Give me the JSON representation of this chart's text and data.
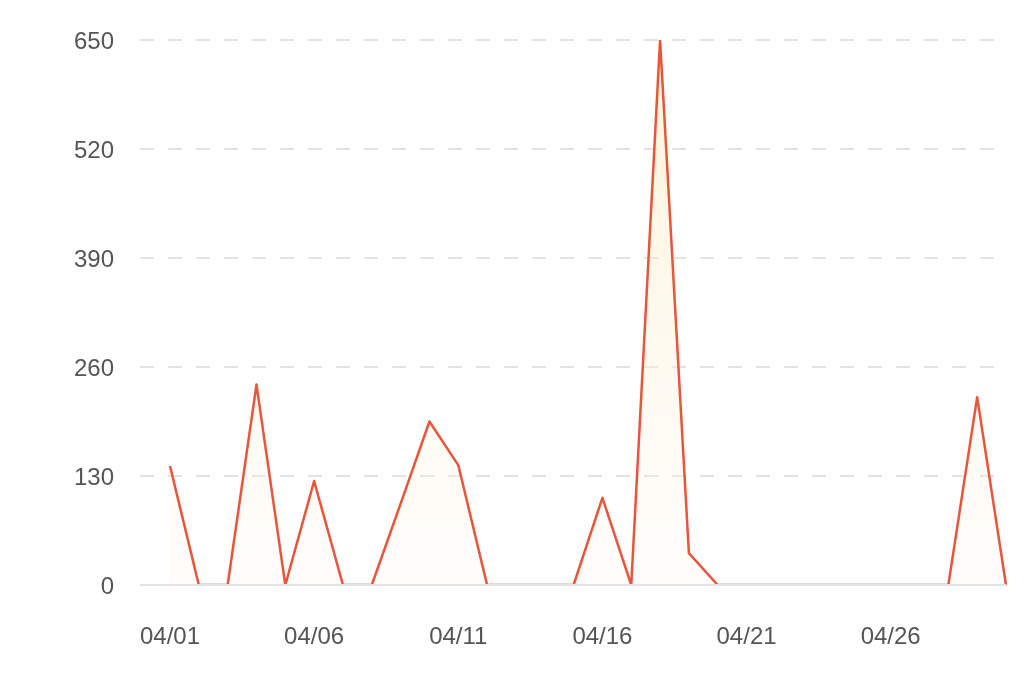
{
  "chart_data": {
    "type": "area",
    "categories": [
      "04/01",
      null,
      null,
      null,
      null,
      "04/06",
      null,
      null,
      null,
      null,
      "04/11",
      null,
      null,
      null,
      null,
      "04/16",
      null,
      null,
      null,
      null,
      "04/21",
      null,
      null,
      null,
      null,
      "04/26",
      null,
      null,
      null,
      null
    ],
    "series": [
      {
        "color": "#e8553a",
        "values": [
          142,
          0,
          0,
          239,
          0,
          124,
          0,
          0,
          97,
          195,
          143,
          0,
          0,
          0,
          0,
          104,
          0,
          650,
          38,
          0,
          0,
          0,
          0,
          0,
          0,
          0,
          0,
          0,
          224,
          0
        ]
      }
    ],
    "ylim": [
      0,
      650
    ],
    "yticks": [
      0,
      130,
      260,
      390,
      520,
      650
    ],
    "grid": "y",
    "legend": false
  }
}
